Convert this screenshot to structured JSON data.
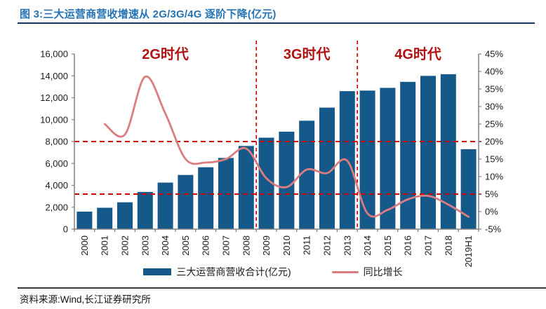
{
  "page": {
    "title": "图 3:三大运营商营收增速从 2G/3G/4G 逐阶下降(亿元)",
    "source": "资料来源:Wind,长江证券研究所"
  },
  "legend": {
    "bar_label": "三大运营商营收合计(亿元)",
    "line_label": "同比增长"
  },
  "chart_data": {
    "type": "bar",
    "subtype": "bar+line dual axis",
    "categories": [
      "2000",
      "2001",
      "2002",
      "2003",
      "2004",
      "2005",
      "2006",
      "2007",
      "2008",
      "2009",
      "2010",
      "2011",
      "2012",
      "2013",
      "2014",
      "2015",
      "2016",
      "2017",
      "2018",
      "2019H1"
    ],
    "series": [
      {
        "name": "三大运营商营收合计(亿元)",
        "type": "bar",
        "axis": "left",
        "values": [
          1600,
          1950,
          2450,
          3400,
          4250,
          4950,
          5650,
          6500,
          7600,
          8350,
          8900,
          9900,
          11100,
          12600,
          12650,
          12900,
          13450,
          14000,
          14150,
          7300
        ]
      },
      {
        "name": "同比增长",
        "type": "line",
        "axis": "right",
        "start_index": 1,
        "values_pct": [
          25,
          22,
          38.5,
          28,
          15,
          14,
          15,
          18,
          9.5,
          7,
          12,
          11,
          14.5,
          -0.5,
          0.5,
          3.5,
          4.5,
          2,
          -1.5
        ]
      }
    ],
    "left_axis": {
      "min": 0,
      "max": 16000,
      "step": 2000,
      "tick_labels": [
        "0",
        "2,000",
        "4,000",
        "6,000",
        "8,000",
        "10,000",
        "12,000",
        "14,000",
        "16,000"
      ]
    },
    "right_axis": {
      "min": -5,
      "max": 45,
      "step": 5,
      "tick_labels": [
        "-5%",
        "0%",
        "5%",
        "10%",
        "15%",
        "20%",
        "25%",
        "30%",
        "35%",
        "40%",
        "45%"
      ]
    },
    "reference_lines_right_pct": [
      20,
      5
    ],
    "era_dividers_after_category": [
      "2008",
      "2013"
    ],
    "era_labels": [
      "2G时代",
      "3G时代",
      "4G时代"
    ],
    "grid": "off",
    "legend_position": "bottom",
    "colors": {
      "bar": "#15598A",
      "line": "#DC7C80",
      "reference_dash": "#CC0000",
      "era_text": "#B01212",
      "title_text": "#2573B4",
      "axis": "#808080",
      "tick_text": "#1A1A1A"
    }
  }
}
